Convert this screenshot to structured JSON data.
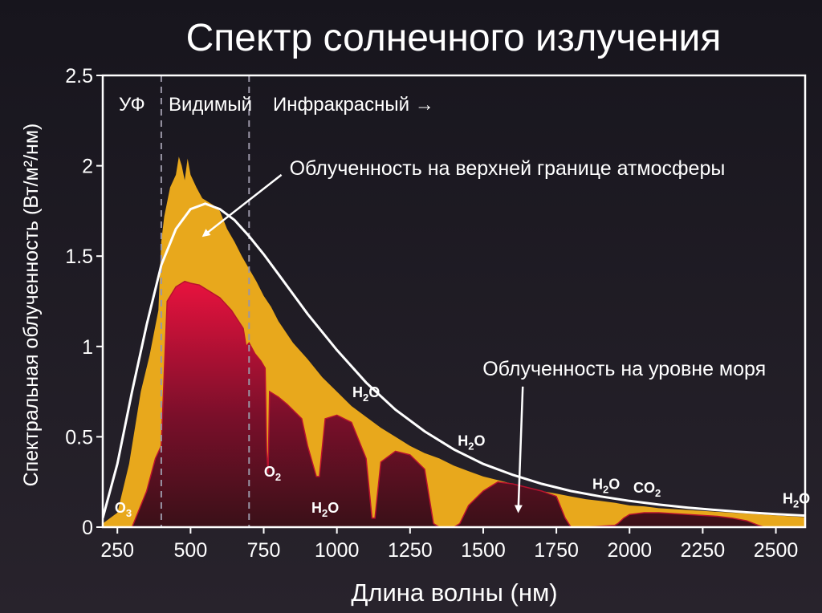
{
  "chart_data": {
    "type": "area",
    "title": "Спектр солнечного излучения",
    "xlabel": "Длина волны (нм)",
    "ylabel": "Спектральная облученность (Вт/м²/нм)",
    "xlim": [
      200,
      2600
    ],
    "ylim": [
      0,
      2.5
    ],
    "x_ticks": [
      250,
      500,
      750,
      1000,
      1250,
      1500,
      1750,
      2000,
      2250,
      2500
    ],
    "y_ticks": [
      {
        "value": 0,
        "label": "0"
      },
      {
        "value": 0.5,
        "label": "0.5"
      },
      {
        "value": 1,
        "label": "1"
      },
      {
        "value": 1.5,
        "label": "1.5"
      },
      {
        "value": 2,
        "label": "2"
      },
      {
        "value": 2.5,
        "label": "2.5"
      }
    ],
    "regions": [
      {
        "label": "УФ",
        "x": 250
      },
      {
        "label": "Видимый",
        "x": 550
      },
      {
        "label": "Инфракрасный →",
        "x": 870
      }
    ],
    "region_boundaries": [
      400,
      700
    ],
    "series": [
      {
        "name": "Облученность на верхней границе атмосферы",
        "color": "#e8a81c",
        "x": [
          200,
          250,
          290,
          330,
          360,
          390,
          400,
          410,
          430,
          450,
          460,
          470,
          480,
          490,
          500,
          520,
          540,
          560,
          580,
          600,
          625,
          650,
          675,
          700,
          725,
          750,
          775,
          800,
          850,
          900,
          950,
          1000,
          1050,
          1100,
          1150,
          1200,
          1250,
          1300,
          1350,
          1400,
          1450,
          1500,
          1550,
          1600,
          1650,
          1700,
          1750,
          1800,
          1850,
          1900,
          1950,
          2000,
          2050,
          2100,
          2150,
          2200,
          2250,
          2300,
          2350,
          2400,
          2450,
          2500,
          2550,
          2600
        ],
        "y": [
          0.02,
          0.08,
          0.35,
          0.75,
          0.95,
          1.2,
          1.58,
          1.72,
          1.88,
          1.95,
          2.05,
          2.0,
          1.92,
          2.04,
          1.95,
          1.88,
          1.82,
          1.8,
          1.78,
          1.75,
          1.65,
          1.58,
          1.5,
          1.43,
          1.36,
          1.28,
          1.22,
          1.14,
          1.02,
          0.93,
          0.83,
          0.75,
          0.67,
          0.61,
          0.55,
          0.5,
          0.45,
          0.41,
          0.38,
          0.34,
          0.31,
          0.28,
          0.26,
          0.24,
          0.22,
          0.2,
          0.185,
          0.17,
          0.155,
          0.145,
          0.135,
          0.12,
          0.115,
          0.105,
          0.1,
          0.095,
          0.09,
          0.085,
          0.08,
          0.075,
          0.07,
          0.065,
          0.06,
          0.055
        ]
      },
      {
        "name": "Облученность на уровне моря",
        "color": "#d5143c",
        "x": [
          300,
          320,
          350,
          380,
          400,
          420,
          450,
          480,
          500,
          530,
          560,
          600,
          640,
          680,
          690,
          700,
          720,
          740,
          755,
          760,
          765,
          770,
          800,
          830,
          880,
          900,
          930,
          940,
          960,
          1000,
          1050,
          1100,
          1120,
          1130,
          1150,
          1200,
          1250,
          1300,
          1330,
          1350,
          1400,
          1420,
          1450,
          1500,
          1550,
          1600,
          1650,
          1700,
          1750,
          1780,
          1800,
          1850,
          1900,
          1950,
          1960,
          1980,
          2000,
          2050,
          2100,
          2150,
          2200,
          2250,
          2300,
          2350,
          2400,
          2440,
          2460,
          2500,
          2600
        ],
        "y": [
          0,
          0.08,
          0.2,
          0.38,
          0.45,
          1.25,
          1.33,
          1.36,
          1.35,
          1.34,
          1.31,
          1.27,
          1.2,
          1.1,
          1.0,
          1.02,
          0.96,
          0.92,
          0.88,
          0.42,
          0.3,
          0.75,
          0.72,
          0.68,
          0.6,
          0.45,
          0.28,
          0.28,
          0.6,
          0.62,
          0.58,
          0.38,
          0.05,
          0.05,
          0.36,
          0.42,
          0.4,
          0.32,
          0.02,
          0,
          0,
          0.02,
          0.12,
          0.2,
          0.25,
          0.24,
          0.22,
          0.2,
          0.17,
          0.05,
          0,
          0,
          0.005,
          0.01,
          0.02,
          0.05,
          0.07,
          0.08,
          0.08,
          0.075,
          0.07,
          0.065,
          0.06,
          0.05,
          0.035,
          0.01,
          0,
          0,
          0
        ]
      }
    ],
    "annotations": [
      {
        "text": "Облученность на верхней границе атмосферы",
        "x": 1030,
        "y": 1.95,
        "target_x": 550,
        "target_y": 1.62
      },
      {
        "text": "Облученность на уровне моря",
        "x": 1690,
        "y": 0.84,
        "target_x": 1620,
        "target_y": 0.1
      }
    ],
    "absorption_labels": [
      {
        "molecule": "O",
        "sub": "3",
        "x": 270,
        "y": 0.08
      },
      {
        "molecule": "O",
        "sub": "2",
        "x": 780,
        "y": 0.28
      },
      {
        "molecule": "H",
        "sub": "2",
        "tail": "O",
        "x": 960,
        "y": 0.08
      },
      {
        "molecule": "H",
        "sub": "2",
        "tail": "O",
        "x": 1100,
        "y": 0.72
      },
      {
        "molecule": "H",
        "sub": "2",
        "tail": "O",
        "x": 1460,
        "y": 0.45
      },
      {
        "molecule": "H",
        "sub": "2",
        "tail": "O",
        "x": 1920,
        "y": 0.21
      },
      {
        "molecule": "CO",
        "sub": "2",
        "x": 2060,
        "y": 0.19
      },
      {
        "molecule": "H",
        "sub": "2",
        "tail": "O",
        "x": 2570,
        "y": 0.13
      }
    ],
    "blackbody_curve": {
      "color": "#ffffff",
      "x": [
        200,
        250,
        300,
        350,
        400,
        450,
        500,
        550,
        600,
        650,
        700,
        750,
        800,
        900,
        1000,
        1100,
        1200,
        1300,
        1400,
        1500,
        1600,
        1700,
        1800,
        1900,
        2000,
        2100,
        2200,
        2300,
        2400,
        2500,
        2600
      ],
      "y": [
        0.05,
        0.35,
        0.75,
        1.12,
        1.45,
        1.65,
        1.76,
        1.79,
        1.76,
        1.7,
        1.61,
        1.51,
        1.4,
        1.18,
        0.98,
        0.8,
        0.65,
        0.53,
        0.43,
        0.35,
        0.29,
        0.24,
        0.2,
        0.17,
        0.145,
        0.125,
        0.108,
        0.094,
        0.082,
        0.072,
        0.064
      ]
    }
  }
}
